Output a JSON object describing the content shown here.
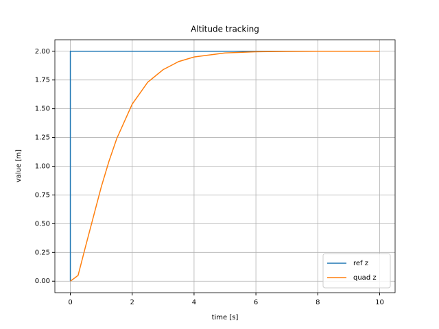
{
  "chart_data": {
    "type": "line",
    "title": "Altitude tracking",
    "xlabel": "time [s]",
    "ylabel": "value [m]",
    "series": [
      {
        "name": "ref z",
        "color": "#1f77b4",
        "x": [
          0,
          0,
          10
        ],
        "values": [
          0,
          2,
          2
        ]
      },
      {
        "name": "quad z",
        "color": "#ff7f0e",
        "x": [
          0,
          0.25,
          0.5,
          0.75,
          1,
          1.25,
          1.5,
          2,
          2.5,
          3,
          3.5,
          4,
          5,
          6,
          7,
          8,
          9,
          10
        ],
        "values": [
          0,
          0.05,
          0.31,
          0.565,
          0.82,
          1.044,
          1.24,
          1.54,
          1.73,
          1.84,
          1.91,
          1.95,
          1.985,
          1.996,
          1.999,
          2.0,
          2.0,
          2.0
        ]
      }
    ],
    "xlim": [
      -0.5,
      10.5
    ],
    "ylim": [
      -0.1,
      2.1
    ],
    "xticks": [
      0,
      2,
      4,
      6,
      8,
      10
    ],
    "yticks": [
      {
        "value": 0,
        "label": "0.00"
      },
      {
        "value": 0.25,
        "label": "0.25"
      },
      {
        "value": 0.5,
        "label": "0.50"
      },
      {
        "value": 0.75,
        "label": "0.75"
      },
      {
        "value": 1,
        "label": "1.00"
      },
      {
        "value": 1.25,
        "label": "1.25"
      },
      {
        "value": 1.5,
        "label": "1.50"
      },
      {
        "value": 1.75,
        "label": "1.75"
      },
      {
        "value": 2,
        "label": "2.00"
      }
    ],
    "grid": true,
    "legend": "lower right"
  }
}
